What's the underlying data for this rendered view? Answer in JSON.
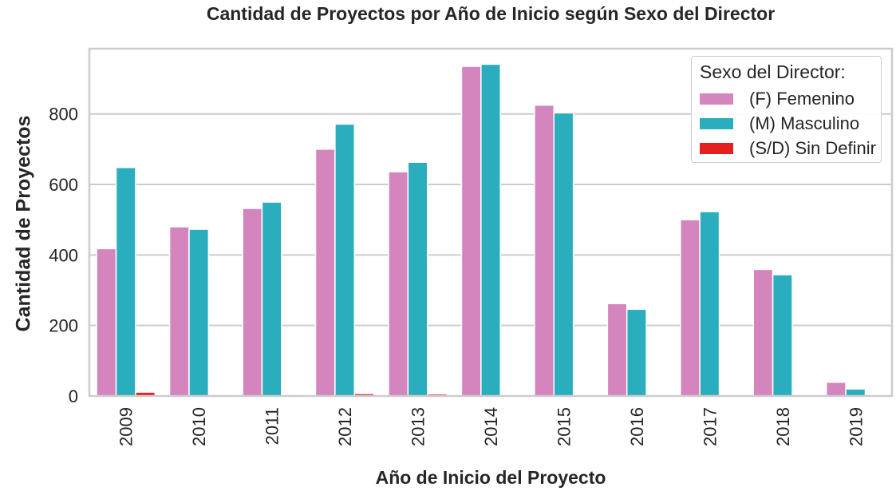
{
  "chart_data": {
    "type": "bar",
    "title": "Cantidad de Proyectos por Año de Inicio según Sexo del Director",
    "xlabel": "Año de Inicio del Proyecto",
    "ylabel": "Cantidad de Proyectos",
    "categories": [
      "2009",
      "2010",
      "2011",
      "2012",
      "2013",
      "2014",
      "2015",
      "2016",
      "2017",
      "2018",
      "2019"
    ],
    "ylim": [
      0,
      985
    ],
    "yticks": [
      0,
      200,
      400,
      600,
      800
    ],
    "grid": true,
    "legend": {
      "title": "Sexo del Director:",
      "placement": "top-right"
    },
    "series": [
      {
        "name": "(F) Femenino",
        "color": "#d585be",
        "values": [
          418,
          480,
          532,
          700,
          636,
          935,
          825,
          262,
          500,
          359,
          39
        ]
      },
      {
        "name": "(M) Masculino",
        "color": "#2aadbc",
        "values": [
          648,
          473,
          550,
          771,
          663,
          941,
          803,
          246,
          523,
          344,
          20
        ]
      },
      {
        "name": "(S/D) Sin Definir",
        "color": "#e5211f",
        "values": [
          11,
          4,
          4,
          7,
          6,
          1,
          1,
          1,
          1,
          1,
          1
        ]
      }
    ]
  }
}
